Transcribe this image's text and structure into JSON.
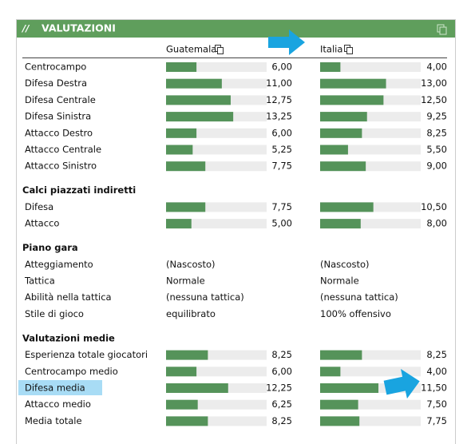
{
  "header": {
    "title": "VALUTAZIONI"
  },
  "teams": [
    "Guatemala",
    "Italia"
  ],
  "sections": [
    {
      "rows": [
        {
          "label": "Centrocampo",
          "cells": [
            {
              "value": 6.0,
              "label": "6,00"
            },
            {
              "value": 4.0,
              "label": "4,00"
            }
          ]
        },
        {
          "label": "Difesa Destra",
          "cells": [
            {
              "value": 11.0,
              "label": "11,00"
            },
            {
              "value": 13.0,
              "label": "13,00"
            }
          ]
        },
        {
          "label": "Difesa Centrale",
          "cells": [
            {
              "value": 12.75,
              "label": "12,75"
            },
            {
              "value": 12.5,
              "label": "12,50"
            }
          ]
        },
        {
          "label": "Difesa Sinistra",
          "cells": [
            {
              "value": 13.25,
              "label": "13,25"
            },
            {
              "value": 9.25,
              "label": "9,25"
            }
          ]
        },
        {
          "label": "Attacco Destro",
          "cells": [
            {
              "value": 6.0,
              "label": "6,00"
            },
            {
              "value": 8.25,
              "label": "8,25"
            }
          ]
        },
        {
          "label": "Attacco Centrale",
          "cells": [
            {
              "value": 5.25,
              "label": "5,25"
            },
            {
              "value": 5.5,
              "label": "5,50"
            }
          ]
        },
        {
          "label": "Attacco Sinistro",
          "cells": [
            {
              "value": 7.75,
              "label": "7,75"
            },
            {
              "value": 9.0,
              "label": "9,00"
            }
          ]
        }
      ]
    },
    {
      "title": "Calci piazzati indiretti",
      "rows": [
        {
          "label": "Difesa",
          "cells": [
            {
              "value": 7.75,
              "label": "7,75"
            },
            {
              "value": 10.5,
              "label": "10,50"
            }
          ]
        },
        {
          "label": "Attacco",
          "cells": [
            {
              "value": 5.0,
              "label": "5,00"
            },
            {
              "value": 8.0,
              "label": "8,00"
            }
          ]
        }
      ]
    },
    {
      "title": "Piano gara",
      "rows": [
        {
          "label": "Atteggiamento",
          "cells": [
            "(Nascosto)",
            "(Nascosto)"
          ]
        },
        {
          "label": "Tattica",
          "cells": [
            "Normale",
            "Normale"
          ]
        },
        {
          "label": "Abilità nella tattica",
          "cells": [
            "(nessuna tattica)",
            "(nessuna tattica)"
          ]
        },
        {
          "label": "Stile di gioco",
          "cells": [
            "equilibrato",
            "100% offensivo"
          ]
        }
      ]
    },
    {
      "title": "Valutazioni medie",
      "rows": [
        {
          "label": "Esperienza totale giocatori",
          "cells": [
            {
              "value": 8.25,
              "label": "8,25"
            },
            {
              "value": 8.25,
              "label": "8,25"
            }
          ]
        },
        {
          "label": "Centrocampo medio",
          "cells": [
            {
              "value": 6.0,
              "label": "6,00"
            },
            {
              "value": 4.0,
              "label": "4,00"
            }
          ]
        },
        {
          "label": "Difesa media",
          "cells": [
            {
              "value": 12.25,
              "label": "12,25"
            },
            {
              "value": 11.5,
              "label": "11,50"
            }
          ]
        },
        {
          "label": "Attacco medio",
          "cells": [
            {
              "value": 6.25,
              "label": "6,25"
            },
            {
              "value": 7.5,
              "label": "7,50"
            }
          ]
        },
        {
          "label": "Media totale",
          "cells": [
            {
              "value": 8.25,
              "label": "8,25"
            },
            {
              "value": 7.75,
              "label": "7,75"
            }
          ]
        }
      ]
    }
  ]
}
